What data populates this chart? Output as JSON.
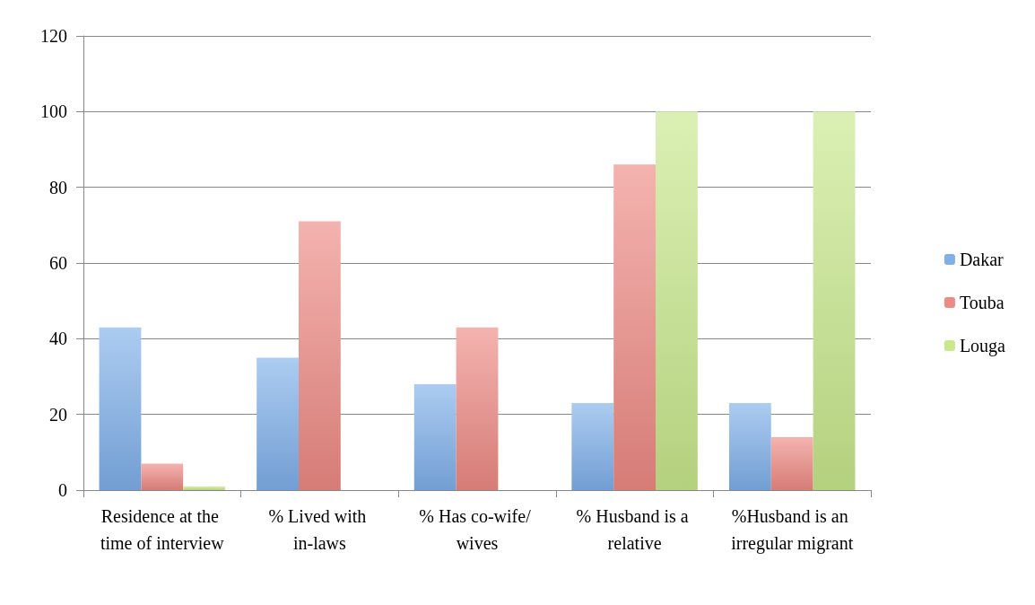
{
  "chart_data": {
    "type": "bar",
    "categories": [
      "Residence at the time of interview",
      "% Lived with in-laws",
      "% Has co-wife/ wives",
      "% Husband is a relative",
      "%Husband is an irregular migrant"
    ],
    "series": [
      {
        "name": "Dakar",
        "color": "#7fb0ea",
        "values": [
          43,
          35,
          28,
          23,
          23
        ]
      },
      {
        "name": "Touba",
        "color": "#ee8a84",
        "values": [
          7,
          71,
          43,
          86,
          14
        ]
      },
      {
        "name": "Louga",
        "color": "#c8e88c",
        "values": [
          1,
          null,
          null,
          100,
          100
        ]
      }
    ],
    "ylim": [
      0,
      120
    ],
    "yticks": [
      0,
      20,
      40,
      60,
      80,
      100,
      120
    ],
    "grid": "y",
    "legend": "right"
  }
}
